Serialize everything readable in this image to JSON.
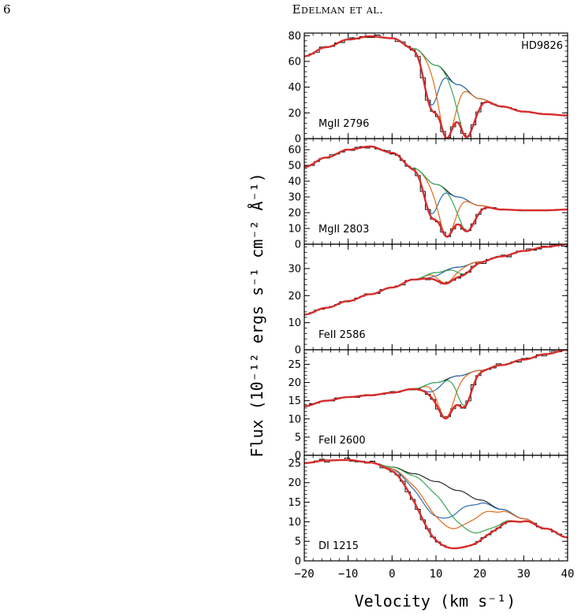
{
  "header": {
    "page_number": "6",
    "running_head": "Edelman et al."
  },
  "chart_data": {
    "type": "line",
    "xlabel": "Velocity (km s⁻¹)",
    "ylabel": "Flux (10⁻¹² ergs s⁻¹ cm⁻² Å⁻¹)",
    "xlim": [
      -20,
      40
    ],
    "xticks": [
      -20,
      -10,
      0,
      10,
      20,
      30,
      40
    ],
    "xtick_labels": [
      "−20",
      "−10",
      "0",
      "10",
      "20",
      "30",
      "40"
    ],
    "colors": {
      "continuum": "#000000",
      "data": "#000000",
      "component_blue": "#2b6cb0",
      "component_orange": "#e06a1a",
      "component_green": "#3aa65a",
      "fit": "#d62d2d"
    },
    "panels": [
      {
        "label": "MgII 2796",
        "star": "HD9826",
        "ylim": [
          0,
          82
        ],
        "yticks": [
          0,
          20,
          40,
          60,
          80
        ],
        "continuum": [
          [
            -20,
            64
          ],
          [
            -15,
            71
          ],
          [
            -10,
            77
          ],
          [
            -5,
            79.5
          ],
          [
            0,
            78
          ],
          [
            5,
            70
          ],
          [
            10,
            57
          ],
          [
            15,
            42
          ],
          [
            20,
            31
          ],
          [
            25,
            25
          ],
          [
            30,
            21
          ],
          [
            35,
            19
          ],
          [
            40,
            18
          ]
        ],
        "components": [
          {
            "color": "component_blue",
            "v": 9,
            "sigma": 1.6,
            "depth": 0.55
          },
          {
            "color": "component_orange",
            "v": 12.5,
            "sigma": 1.8,
            "depth": 0.99
          },
          {
            "color": "component_green",
            "v": 17,
            "sigma": 1.8,
            "depth": 0.97
          }
        ]
      },
      {
        "label": "MgII 2803",
        "ylim": [
          0,
          67
        ],
        "yticks": [
          0,
          10,
          20,
          30,
          40,
          50,
          60
        ],
        "continuum": [
          [
            -20,
            49
          ],
          [
            -15,
            55
          ],
          [
            -10,
            60
          ],
          [
            -5,
            62
          ],
          [
            0,
            58
          ],
          [
            5,
            48
          ],
          [
            10,
            38
          ],
          [
            15,
            30
          ],
          [
            20,
            24.5
          ],
          [
            25,
            22
          ],
          [
            30,
            21.5
          ],
          [
            35,
            21.5
          ],
          [
            40,
            22
          ]
        ],
        "components": [
          {
            "color": "component_blue",
            "v": 9,
            "sigma": 1.6,
            "depth": 0.5
          },
          {
            "color": "component_orange",
            "v": 12.5,
            "sigma": 1.8,
            "depth": 0.85
          },
          {
            "color": "component_green",
            "v": 17,
            "sigma": 1.8,
            "depth": 0.7
          }
        ]
      },
      {
        "label": "FeII 2586",
        "ylim": [
          0,
          39
        ],
        "yticks": [
          0,
          10,
          20,
          30
        ],
        "continuum": [
          [
            -20,
            13
          ],
          [
            -15,
            15.5
          ],
          [
            -10,
            18
          ],
          [
            -5,
            20.5
          ],
          [
            0,
            23
          ],
          [
            5,
            26
          ],
          [
            10,
            28.5
          ],
          [
            15,
            30.5
          ],
          [
            20,
            32.5
          ],
          [
            25,
            34.5
          ],
          [
            30,
            36.5
          ],
          [
            35,
            38
          ],
          [
            40,
            39
          ]
        ],
        "components": [
          {
            "color": "component_blue",
            "v": 9,
            "sigma": 1.6,
            "depth": 0.05
          },
          {
            "color": "component_orange",
            "v": 12.5,
            "sigma": 1.8,
            "depth": 0.16
          },
          {
            "color": "component_green",
            "v": 16.5,
            "sigma": 1.8,
            "depth": 0.09
          }
        ]
      },
      {
        "label": "FeII 2600",
        "ylim": [
          0,
          29
        ],
        "yticks": [
          0,
          5,
          10,
          15,
          20,
          25
        ],
        "continuum": [
          [
            -20,
            13.5
          ],
          [
            -15,
            15
          ],
          [
            -10,
            16
          ],
          [
            -5,
            16.5
          ],
          [
            0,
            17.2
          ],
          [
            5,
            18.3
          ],
          [
            10,
            20
          ],
          [
            15,
            21.8
          ],
          [
            20,
            23.3
          ],
          [
            25,
            24.8
          ],
          [
            30,
            26.3
          ],
          [
            35,
            27.8
          ],
          [
            40,
            29
          ]
        ],
        "components": [
          {
            "color": "component_blue",
            "v": 9,
            "sigma": 1.6,
            "depth": 0.12
          },
          {
            "color": "component_orange",
            "v": 12.3,
            "sigma": 1.8,
            "depth": 0.5
          },
          {
            "color": "component_green",
            "v": 16.5,
            "sigma": 1.6,
            "depth": 0.38
          }
        ]
      },
      {
        "label": "DI 1215",
        "ylim": [
          0,
          27
        ],
        "yticks": [
          0,
          5,
          10,
          15,
          20,
          25
        ],
        "continuum": [
          [
            -20,
            25
          ],
          [
            -15,
            25.7
          ],
          [
            -10,
            25.8
          ],
          [
            -5,
            25.2
          ],
          [
            0,
            24
          ],
          [
            5,
            22.3
          ],
          [
            10,
            20.3
          ],
          [
            15,
            18
          ],
          [
            20,
            15.6
          ],
          [
            25,
            13.2
          ],
          [
            30,
            10.8
          ],
          [
            35,
            8.3
          ],
          [
            40,
            6
          ]
        ],
        "components": [
          {
            "color": "component_blue",
            "v": 11,
            "sigma": 4.5,
            "depth": 0.45
          },
          {
            "color": "component_orange",
            "v": 13.5,
            "sigma": 5.2,
            "depth": 0.55
          },
          {
            "color": "component_green",
            "v": 18.5,
            "sigma": 5.5,
            "depth": 0.55
          }
        ]
      }
    ]
  }
}
